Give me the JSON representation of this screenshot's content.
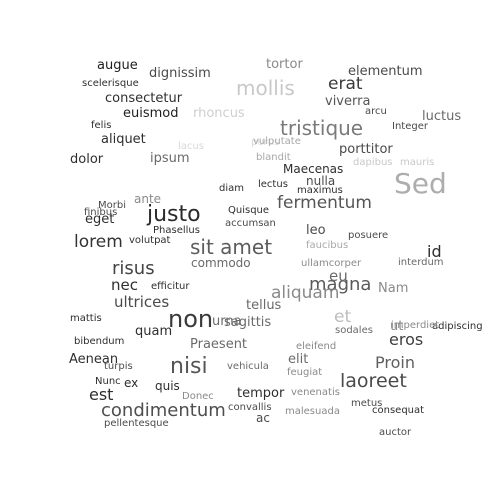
{
  "words": [
    {
      "text": "Sed",
      "color": "#adadad"
    },
    {
      "text": "non",
      "color": "#3a3a3a"
    },
    {
      "text": "justo",
      "color": "#2a2a2a"
    },
    {
      "text": "nisi",
      "color": "#555555"
    },
    {
      "text": "tristique",
      "color": "#7a7a7a"
    },
    {
      "text": "mollis",
      "color": "#c8c8c8"
    },
    {
      "text": "sit amet",
      "color": "#5c5c5c"
    },
    {
      "text": "laoreet",
      "color": "#4a4a4a"
    },
    {
      "text": "condimentum",
      "color": "#4e4e4e"
    },
    {
      "text": "magna",
      "color": "#5a5a5a"
    },
    {
      "text": "risus",
      "color": "#444444"
    },
    {
      "text": "fermentum",
      "color": "#555555"
    },
    {
      "text": "aliquam",
      "color": "#8a8a8a"
    },
    {
      "text": "lorem",
      "color": "#333333"
    },
    {
      "text": "et",
      "color": "#bdbdbd"
    },
    {
      "text": "Proin",
      "color": "#5f5f5f"
    },
    {
      "text": "erat",
      "color": "#3a3a3a"
    },
    {
      "text": "eros",
      "color": "#3e3e3e"
    },
    {
      "text": "ultrices",
      "color": "#4a4a4a"
    },
    {
      "text": "est",
      "color": "#2e2e2e"
    },
    {
      "text": "id",
      "color": "#2e2e2e"
    },
    {
      "text": "nec",
      "color": "#2e2e2e"
    },
    {
      "text": "eu",
      "color": "#6a6a6a"
    },
    {
      "text": "dignissim",
      "color": "#4a4a4a"
    },
    {
      "text": "augue",
      "color": "#1e1e1e"
    },
    {
      "text": "consectetur",
      "color": "#2e2e2e"
    },
    {
      "text": "euismod",
      "color": "#1e1e1e"
    },
    {
      "text": "aliquet",
      "color": "#2e2e2e"
    },
    {
      "text": "dolor",
      "color": "#2e2e2e"
    },
    {
      "text": "ipsum",
      "color": "#6a6a6a"
    },
    {
      "text": "porttitor",
      "color": "#4a4a4a"
    },
    {
      "text": "elementum",
      "color": "#4a4a4a"
    },
    {
      "text": "viverra",
      "color": "#555555"
    },
    {
      "text": "luctus",
      "color": "#6a6a6a"
    },
    {
      "text": "tortor",
      "color": "#8a8a8a"
    },
    {
      "text": "rhoncus",
      "color": "#cfcfcf"
    },
    {
      "text": "Maecenas",
      "color": "#2e2e2e"
    },
    {
      "text": "nulla",
      "color": "#4a4a4a"
    },
    {
      "text": "eget",
      "color": "#2e2e2e"
    },
    {
      "text": "quam",
      "color": "#2e2e2e"
    },
    {
      "text": "Aenean",
      "color": "#2e2e2e"
    },
    {
      "text": "tempor",
      "color": "#2e2e2e"
    },
    {
      "text": "Praesent",
      "color": "#6a6a6a"
    },
    {
      "text": "tellus",
      "color": "#6a6a6a"
    },
    {
      "text": "sagittis",
      "color": "#6a6a6a"
    },
    {
      "text": "elit",
      "color": "#6a6a6a"
    },
    {
      "text": "urna",
      "color": "#6a6a6a"
    },
    {
      "text": "leo",
      "color": "#4a4a4a"
    },
    {
      "text": "Nam",
      "color": "#8a8a8a"
    },
    {
      "text": "ut",
      "color": "#8a8a8a"
    },
    {
      "text": "commodo",
      "color": "#6a6a6a"
    },
    {
      "text": "quis",
      "color": "#2e2e2e"
    },
    {
      "text": "ac",
      "color": "#4a4a4a"
    },
    {
      "text": "ex",
      "color": "#2e2e2e"
    },
    {
      "text": "scelerisque",
      "color": "#2e2e2e"
    },
    {
      "text": "felis",
      "color": "#2e2e2e"
    },
    {
      "text": "Integer",
      "color": "#4a4a4a"
    },
    {
      "text": "arcu",
      "color": "#4a4a4a"
    },
    {
      "text": "purus",
      "color": "#d9d9d9"
    },
    {
      "text": "lacus",
      "color": "#d9d9d9"
    },
    {
      "text": "vulputate",
      "color": "#a8a8a8"
    },
    {
      "text": "blandit",
      "color": "#a8a8a8"
    },
    {
      "text": "dapibus",
      "color": "#c8c8c8"
    },
    {
      "text": "mauris",
      "color": "#c8c8c8"
    },
    {
      "text": "finibus",
      "color": "#4a4a4a"
    },
    {
      "text": "Morbi",
      "color": "#4a4a4a"
    },
    {
      "text": "ante",
      "color": "#8a8a8a"
    },
    {
      "text": "diam",
      "color": "#2e2e2e"
    },
    {
      "text": "lectus",
      "color": "#2e2e2e"
    },
    {
      "text": "maximus",
      "color": "#2e2e2e"
    },
    {
      "text": "Quisque",
      "color": "#2e2e2e"
    },
    {
      "text": "Phasellus",
      "color": "#2e2e2e"
    },
    {
      "text": "accumsan",
      "color": "#4a4a4a"
    },
    {
      "text": "volutpat",
      "color": "#2e2e2e"
    },
    {
      "text": "posuere",
      "color": "#4a4a4a"
    },
    {
      "text": "faucibus",
      "color": "#a8a8a8"
    },
    {
      "text": "interdum",
      "color": "#6a6a6a"
    },
    {
      "text": "ullamcorper",
      "color": "#8a8a8a"
    },
    {
      "text": "efficitur",
      "color": "#2e2e2e"
    },
    {
      "text": "adipiscing",
      "color": "#2e2e2e"
    },
    {
      "text": "mattis",
      "color": "#2e2e2e"
    },
    {
      "text": "sodales",
      "color": "#6a6a6a"
    },
    {
      "text": "imperdiet",
      "color": "#8a8a8a"
    },
    {
      "text": "bibendum",
      "color": "#2e2e2e"
    },
    {
      "text": "eleifend",
      "color": "#8a8a8a"
    },
    {
      "text": "turpis",
      "color": "#4a4a4a"
    },
    {
      "text": "vehicula",
      "color": "#6a6a6a"
    },
    {
      "text": "feugiat",
      "color": "#8a8a8a"
    },
    {
      "text": "Nunc",
      "color": "#2e2e2e"
    },
    {
      "text": "Donec",
      "color": "#8a8a8a"
    },
    {
      "text": "venenatis",
      "color": "#8a8a8a"
    },
    {
      "text": "convallis",
      "color": "#4a4a4a"
    },
    {
      "text": "malesuada",
      "color": "#8a8a8a"
    },
    {
      "text": "metus",
      "color": "#4a4a4a"
    },
    {
      "text": "consequat",
      "color": "#2e2e2e"
    },
    {
      "text": "pellentesque",
      "color": "#4a4a4a"
    },
    {
      "text": "auctor",
      "color": "#4a4a4a"
    }
  ]
}
